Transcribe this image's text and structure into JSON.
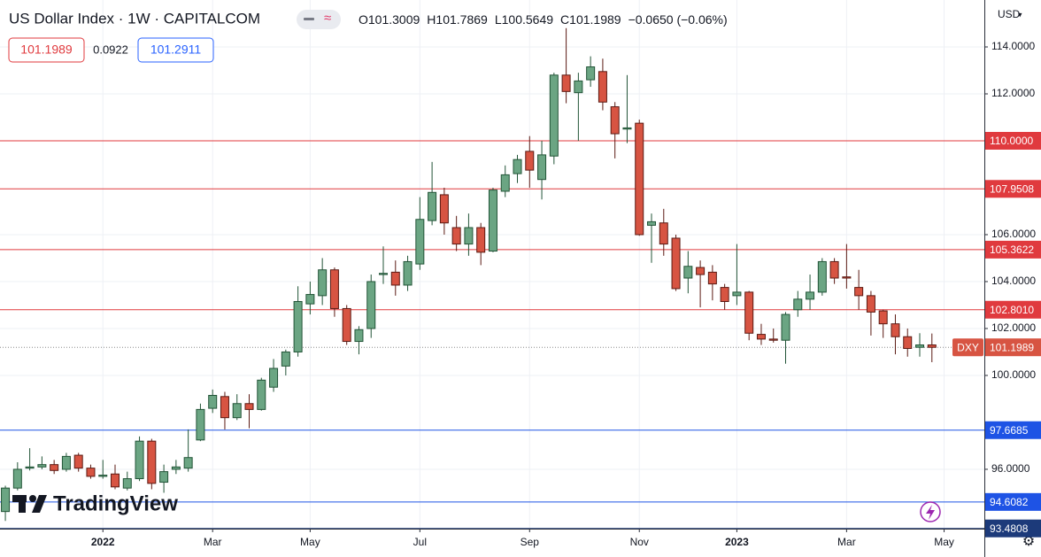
{
  "header": {
    "title": "US Dollar Index · 1W · CAPITALCOM",
    "ohlc": [
      {
        "label": "O",
        "value": 101.3009
      },
      {
        "label": "H",
        "value": 101.7869
      },
      {
        "label": "L",
        "value": 100.5649
      },
      {
        "label": "C",
        "value": 101.1989
      }
    ],
    "change": "−0.0650 (−0.06%)"
  },
  "quote": {
    "sell": 101.1989,
    "spread": 0.0922,
    "buy": 101.2911
  },
  "currency": "USD",
  "branding": "TradingView",
  "chart_data": {
    "type": "candlestick",
    "open": [
      94.2,
      95.2,
      96.05,
      96.1,
      96.2,
      96.0,
      96.6,
      96.05,
      95.7,
      95.8,
      95.2,
      95.6,
      97.2,
      95.45,
      96.0,
      96.05,
      97.25,
      98.6,
      99.1,
      98.2,
      98.8,
      98.55,
      99.5,
      100.4,
      101.0,
      103.05,
      103.4,
      104.5,
      102.85,
      101.45,
      102.0,
      104.3,
      104.4,
      103.85,
      104.75,
      106.6,
      107.7,
      106.3,
      105.6,
      106.3,
      105.3,
      107.85,
      108.6,
      109.55,
      108.35,
      109.35,
      112.8,
      112.05,
      112.6,
      112.95,
      111.45,
      110.5,
      110.75,
      106.4,
      106.5,
      105.85,
      104.15,
      104.6,
      104.4,
      103.75,
      103.4,
      103.55,
      101.75,
      101.55,
      101.5,
      102.8,
      103.25,
      103.55,
      104.85,
      104.2,
      103.75,
      103.4,
      102.75,
      102.2,
      101.65,
      101.2,
      101.3009
    ],
    "high": [
      95.3,
      96.3,
      96.9,
      96.55,
      96.4,
      96.7,
      96.7,
      96.2,
      96.4,
      96.2,
      95.9,
      97.4,
      97.3,
      96.2,
      96.4,
      97.7,
      98.8,
      99.4,
      99.3,
      99.2,
      99.2,
      99.9,
      100.7,
      101.1,
      103.8,
      104.0,
      105.0,
      104.6,
      103.0,
      102.1,
      104.3,
      105.5,
      104.9,
      105.1,
      107.6,
      109.1,
      108.0,
      106.8,
      106.9,
      106.5,
      108.0,
      108.95,
      109.4,
      110.2,
      110.0,
      112.9,
      114.8,
      112.9,
      113.6,
      113.5,
      111.65,
      112.8,
      110.9,
      106.9,
      107.1,
      106.0,
      105.3,
      104.9,
      104.7,
      103.9,
      105.6,
      103.6,
      102.2,
      102.0,
      102.7,
      103.6,
      104.3,
      105.0,
      105.0,
      105.6,
      104.5,
      103.6,
      102.8,
      102.6,
      102.0,
      101.8,
      101.7869
    ],
    "low": [
      93.8,
      95.1,
      95.95,
      96.0,
      95.8,
      95.9,
      95.9,
      95.6,
      95.6,
      95.15,
      95.1,
      95.5,
      95.15,
      95.0,
      95.8,
      95.9,
      97.2,
      98.4,
      97.7,
      98.1,
      97.75,
      98.5,
      99.3,
      100.0,
      100.8,
      102.6,
      103.0,
      102.5,
      101.3,
      100.9,
      101.6,
      103.9,
      103.4,
      103.6,
      104.5,
      106.4,
      106.0,
      105.3,
      105.1,
      104.7,
      105.25,
      107.6,
      108.2,
      108.0,
      107.5,
      109.0,
      111.6,
      110.0,
      112.3,
      111.3,
      109.25,
      109.9,
      105.95,
      104.8,
      105.1,
      103.6,
      103.5,
      102.9,
      103.2,
      102.8,
      103.0,
      101.5,
      101.3,
      101.4,
      100.5,
      102.5,
      102.8,
      103.4,
      103.9,
      103.7,
      102.8,
      101.7,
      101.6,
      100.9,
      100.8,
      100.8,
      100.5649
    ],
    "close": [
      95.2,
      96.0,
      96.1,
      96.2,
      95.95,
      96.55,
      96.05,
      95.7,
      95.75,
      95.25,
      95.6,
      97.2,
      95.4,
      95.9,
      96.1,
      96.5,
      98.55,
      99.15,
      98.2,
      98.8,
      98.55,
      99.8,
      100.3,
      101.0,
      103.15,
      103.45,
      104.5,
      102.85,
      101.45,
      101.95,
      104.0,
      104.35,
      103.85,
      104.85,
      106.65,
      107.8,
      106.5,
      105.6,
      106.3,
      105.25,
      107.9,
      108.55,
      109.2,
      108.75,
      109.4,
      112.8,
      112.1,
      112.55,
      113.15,
      111.65,
      110.3,
      110.55,
      106.0,
      106.55,
      105.6,
      103.7,
      104.65,
      104.3,
      103.9,
      103.15,
      103.55,
      101.8,
      101.55,
      101.5,
      102.6,
      103.25,
      103.55,
      104.85,
      104.15,
      104.15,
      103.4,
      102.7,
      102.2,
      101.65,
      101.15,
      101.3,
      101.1989
    ],
    "up_color": "#6ba583",
    "up_border": "#225437",
    "down_color": "#d75442",
    "down_border": "#5b1a13",
    "xlim": [
      -0.44,
      80.3
    ],
    "xticks": [
      {
        "value": 8,
        "label": "2022"
      },
      {
        "value": 17,
        "label": "Mar"
      },
      {
        "value": 25,
        "label": "May"
      },
      {
        "value": 34,
        "label": "Jul"
      },
      {
        "value": 43,
        "label": "Sep"
      },
      {
        "value": 52,
        "label": "Nov"
      },
      {
        "value": 60,
        "label": "2023"
      },
      {
        "value": 69,
        "label": "Mar"
      },
      {
        "value": 77,
        "label": "May"
      }
    ],
    "ylim": [
      93.47,
      116.0
    ],
    "yticks": [
      {
        "value": 96,
        "label": "96.0000"
      },
      {
        "value": 100,
        "label": "100.0000"
      },
      {
        "value": 102,
        "label": "102.0000"
      },
      {
        "value": 104,
        "label": "104.0000"
      },
      {
        "value": 106,
        "label": "106.0000"
      },
      {
        "value": 112,
        "label": "112.0000"
      },
      {
        "value": 114,
        "label": "114.0000"
      }
    ],
    "grid": true,
    "levels": [
      {
        "value": 110,
        "label": "110.0000",
        "color": "#e03a3e"
      },
      {
        "value": 107.9508,
        "label": "107.9508",
        "color": "#e03a3e"
      },
      {
        "value": 105.3622,
        "label": "105.3622",
        "color": "#e03a3e"
      },
      {
        "value": 102.801,
        "label": "102.8010",
        "color": "#e03a3e"
      },
      {
        "value": 97.6685,
        "label": "97.6685",
        "color": "#1e53e5"
      },
      {
        "value": 94.6082,
        "label": "94.6082",
        "color": "#1e53e5"
      },
      {
        "value": 93.4808,
        "label": "93.4808",
        "color": "#1c3a7a"
      }
    ],
    "last_price": {
      "symbol": "DXY",
      "value": 101.1989,
      "color": "#d75442"
    }
  }
}
